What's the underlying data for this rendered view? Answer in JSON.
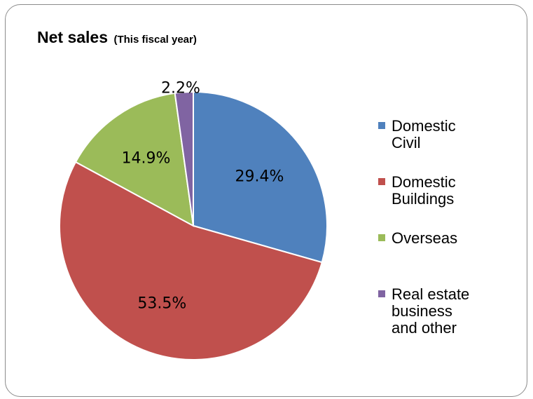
{
  "title": {
    "main": "Net sales",
    "sub": "(This fiscal year)"
  },
  "chart_data": {
    "type": "pie",
    "title": "Net sales (This fiscal year)",
    "legend_position": "right",
    "slices": [
      {
        "label": "Domestic Civil",
        "legend_lines": [
          "Domestic",
          "Civil"
        ],
        "value": 29.4,
        "value_label": "29.4%",
        "color": "#4f81bd"
      },
      {
        "label": "Domestic Buildings",
        "legend_lines": [
          "Domestic",
          "Buildings"
        ],
        "value": 53.5,
        "value_label": "53.5%",
        "color": "#c0504d"
      },
      {
        "label": "Overseas",
        "legend_lines": [
          "Overseas"
        ],
        "value": 14.9,
        "value_label": "14.9%",
        "color": "#9bbb59"
      },
      {
        "label": "Real estate business and other",
        "legend_lines": [
          "Real estate",
          "business",
          "and other"
        ],
        "value": 2.2,
        "value_label": "2.2%",
        "color": "#8064a2"
      }
    ]
  }
}
